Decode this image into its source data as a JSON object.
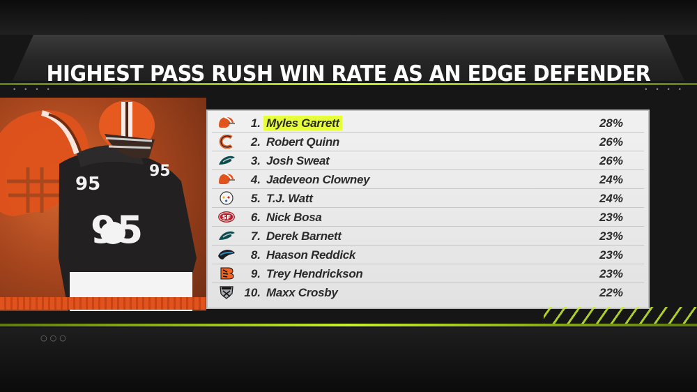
{
  "title": "HIGHEST PASS RUSH WIN RATE AS AN EDGE DEFENDER",
  "player_number": "95",
  "rows": [
    {
      "rank": "1.",
      "name": "Myles Garrett",
      "rate": "28%",
      "team_icon": "browns-helmet-icon",
      "highlighted": true
    },
    {
      "rank": "2.",
      "name": "Robert Quinn",
      "rate": "26%",
      "team_icon": "bears-c-icon",
      "highlighted": false
    },
    {
      "rank": "3.",
      "name": "Josh Sweat",
      "rate": "26%",
      "team_icon": "eagles-head-icon",
      "highlighted": false
    },
    {
      "rank": "4.",
      "name": "Jadeveon Clowney",
      "rate": "24%",
      "team_icon": "browns-helmet-icon",
      "highlighted": false
    },
    {
      "rank": "5.",
      "name": "T.J. Watt",
      "rate": "24%",
      "team_icon": "steelers-logo-icon",
      "highlighted": false
    },
    {
      "rank": "6.",
      "name": "Nick Bosa",
      "rate": "23%",
      "team_icon": "49ers-logo-icon",
      "highlighted": false
    },
    {
      "rank": "7.",
      "name": "Derek Barnett",
      "rate": "23%",
      "team_icon": "eagles-head-icon",
      "highlighted": false
    },
    {
      "rank": "8.",
      "name": "Haason Reddick",
      "rate": "23%",
      "team_icon": "panthers-head-icon",
      "highlighted": false
    },
    {
      "rank": "9.",
      "name": "Trey Hendrickson",
      "rate": "23%",
      "team_icon": "bengals-b-icon",
      "highlighted": false
    },
    {
      "rank": "10.",
      "name": "Maxx Crosby",
      "rate": "22%",
      "team_icon": "raiders-shield-icon",
      "highlighted": false
    }
  ],
  "colors": {
    "accent_green": "#c6ef2a",
    "highlight": "#e7ff3a",
    "browns_orange": "#e0531c"
  }
}
